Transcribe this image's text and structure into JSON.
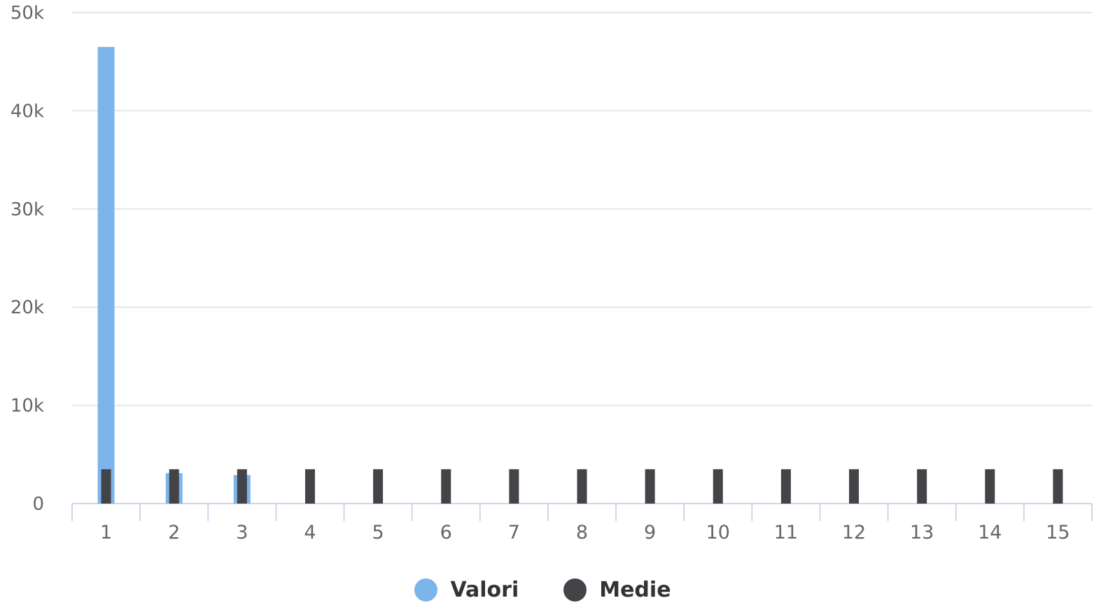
{
  "chart_data": {
    "type": "bar",
    "categories": [
      "1",
      "2",
      "3",
      "4",
      "5",
      "6",
      "7",
      "8",
      "9",
      "10",
      "11",
      "12",
      "13",
      "14",
      "15"
    ],
    "series": [
      {
        "name": "Valori",
        "color": "#7cb5ec",
        "values": [
          46500,
          3100,
          2900,
          0,
          0,
          0,
          0,
          0,
          0,
          0,
          0,
          0,
          0,
          0,
          0
        ]
      },
      {
        "name": "Medie",
        "color": "#434348",
        "values": [
          3500,
          3500,
          3500,
          3500,
          3500,
          3500,
          3500,
          3500,
          3500,
          3500,
          3500,
          3500,
          3500,
          3500,
          3500
        ]
      }
    ],
    "yticks": [
      "0",
      "10k",
      "20k",
      "30k",
      "40k",
      "50k"
    ],
    "ytick_values": [
      0,
      10000,
      20000,
      30000,
      40000,
      50000
    ],
    "ylim": [
      0,
      50000
    ],
    "grid": true,
    "legend_position": "bottom-center"
  }
}
